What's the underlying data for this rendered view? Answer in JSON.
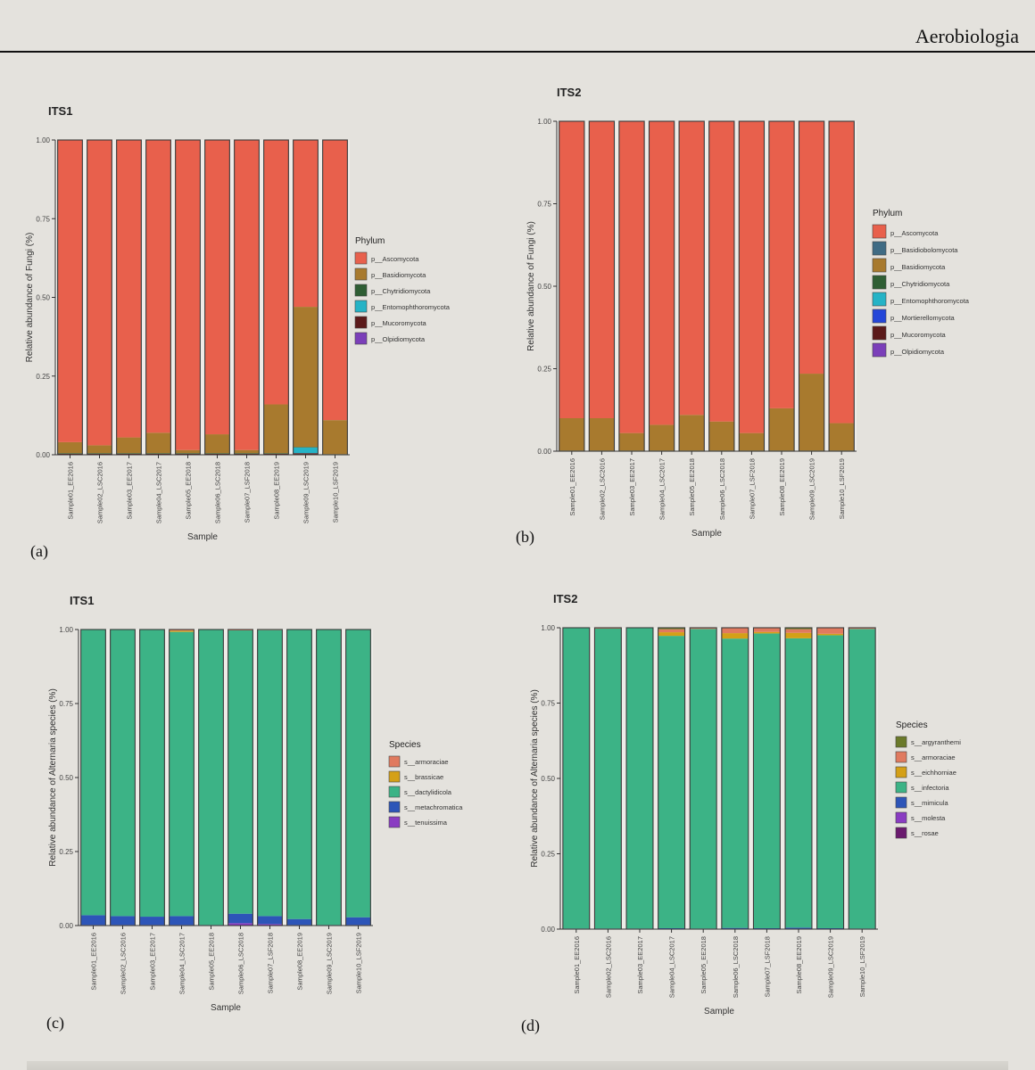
{
  "header": {
    "journal": "Aerobiologia"
  },
  "panels": [
    {
      "letter": "(a)"
    },
    {
      "letter": "(b)"
    },
    {
      "letter": "(c)"
    },
    {
      "letter": "(d)"
    }
  ],
  "chart_data": [
    {
      "type": "bar",
      "stacked": true,
      "title": "ITS1",
      "xlabel": "Sample",
      "ylabel": "Relative abundance of Fungi (%)",
      "ylim": [
        0,
        1
      ],
      "yticks": [
        "0.00",
        "0.25",
        "0.50",
        "0.75",
        "1.00"
      ],
      "legend_title": "Phylum",
      "legend_position": "right",
      "categories": [
        "Sample01_EE2016",
        "Sample02_LSC2016",
        "Sample03_EE2017",
        "Sample04_LSC2017",
        "Sample05_EE2018",
        "Sample06_LSC2018",
        "Sample07_LSF2018",
        "Sample08_EE2019",
        "Sample09_LSC2019",
        "Sample10_LSF2019"
      ],
      "series": [
        {
          "name": "p__Ascomycota",
          "color": "#e8604c",
          "values": [
            0.96,
            0.97,
            0.945,
            0.93,
            0.985,
            0.935,
            0.985,
            0.84,
            0.53,
            0.89
          ]
        },
        {
          "name": "p__Basidiomycota",
          "color": "#a87a2e",
          "values": [
            0.035,
            0.025,
            0.05,
            0.065,
            0.01,
            0.06,
            0.01,
            0.155,
            0.445,
            0.108
          ]
        },
        {
          "name": "p__Chytridiomycota",
          "color": "#2f5e34",
          "values": [
            0.002,
            0.002,
            0.002,
            0.002,
            0.002,
            0.002,
            0.002,
            0.002,
            0.002,
            0.001
          ]
        },
        {
          "name": "p__Entomophthoromycota",
          "color": "#25b3c6",
          "values": [
            0,
            0,
            0,
            0,
            0,
            0,
            0,
            0,
            0.018,
            0
          ]
        },
        {
          "name": "p__Mucoromycota",
          "color": "#5b1a1a",
          "values": [
            0.002,
            0.002,
            0.002,
            0.002,
            0.002,
            0.002,
            0.002,
            0.002,
            0.004,
            0.001
          ]
        },
        {
          "name": "p__Olpidiomycota",
          "color": "#7b3fb9",
          "values": [
            0.001,
            0.001,
            0.001,
            0.001,
            0.001,
            0.001,
            0.001,
            0.001,
            0.001,
            0
          ]
        }
      ]
    },
    {
      "type": "bar",
      "stacked": true,
      "title": "ITS2",
      "xlabel": "Sample",
      "ylabel": "Relative abundance of Fungi (%)",
      "ylim": [
        0,
        1
      ],
      "yticks": [
        "0.00",
        "0.25",
        "0.50",
        "0.75",
        "1.00"
      ],
      "legend_title": "Phylum",
      "legend_position": "right",
      "categories": [
        "Sample01_EE2016",
        "Sample02_LSC2016",
        "Sample03_EE2017",
        "Sample04_LSC2017",
        "Sample05_EE2018",
        "Sample06_LSC2018",
        "Sample07_LSF2018",
        "Sample08_EE2019",
        "Sample09_LSC2019",
        "Sample10_LSF2019"
      ],
      "series": [
        {
          "name": "p__Ascomycota",
          "color": "#e8604c",
          "values": [
            0.9,
            0.9,
            0.945,
            0.92,
            0.89,
            0.91,
            0.945,
            0.87,
            0.765,
            0.915
          ]
        },
        {
          "name": "p__Basidiobolomycota",
          "color": "#3f6b84",
          "values": [
            0,
            0,
            0,
            0,
            0,
            0,
            0,
            0,
            0,
            0
          ]
        },
        {
          "name": "p__Basidiomycota",
          "color": "#a87a2e",
          "values": [
            0.098,
            0.098,
            0.053,
            0.078,
            0.108,
            0.088,
            0.053,
            0.128,
            0.233,
            0.083
          ]
        },
        {
          "name": "p__Chytridiomycota",
          "color": "#2f5e34",
          "values": [
            0.001,
            0.001,
            0.001,
            0.001,
            0.001,
            0.001,
            0.001,
            0.001,
            0.001,
            0.001
          ]
        },
        {
          "name": "p__Entomophthoromycota",
          "color": "#25b3c6",
          "values": [
            0,
            0,
            0,
            0,
            0,
            0,
            0,
            0,
            0,
            0
          ]
        },
        {
          "name": "p__Mortierellomycota",
          "color": "#2446d8",
          "values": [
            0,
            0,
            0,
            0,
            0,
            0,
            0,
            0,
            0,
            0
          ]
        },
        {
          "name": "p__Mucoromycota",
          "color": "#5b1a1a",
          "values": [
            0.001,
            0.001,
            0.001,
            0.001,
            0.001,
            0.001,
            0.001,
            0.001,
            0.001,
            0.001
          ]
        },
        {
          "name": "p__Olpidiomycota",
          "color": "#7b3fb9",
          "values": [
            0,
            0,
            0,
            0,
            0,
            0,
            0,
            0,
            0,
            0
          ]
        }
      ]
    },
    {
      "type": "bar",
      "stacked": true,
      "title": "ITS1",
      "xlabel": "Sample",
      "ylabel": "Relative abundance of Alternaria species (%)",
      "ylim": [
        0,
        1
      ],
      "yticks": [
        "0.00",
        "0.25",
        "0.50",
        "0.75",
        "1.00"
      ],
      "legend_title": "Species",
      "legend_position": "right",
      "categories": [
        "Sample01_EE2016",
        "Sample02_LSC2016",
        "Sample03_EE2017",
        "Sample04_LSC2017",
        "Sample05_EE2018",
        "Sample06_LSC2018",
        "Sample07_LSF2018",
        "Sample08_EE2019",
        "Sample09_LSC2019",
        "Sample10_LSF2019"
      ],
      "series": [
        {
          "name": "s__armoraciae",
          "color": "#e07a5f",
          "values": [
            0,
            0,
            0,
            0.004,
            0,
            0.003,
            0.002,
            0,
            0,
            0
          ]
        },
        {
          "name": "s__brassicae",
          "color": "#d4a017",
          "values": [
            0,
            0,
            0,
            0.004,
            0,
            0,
            0,
            0,
            0,
            0
          ]
        },
        {
          "name": "s__dactylidicola",
          "color": "#3cb386",
          "values": [
            0.965,
            0.968,
            0.97,
            0.96,
            0.998,
            0.957,
            0.966,
            0.978,
            0.998,
            0.972
          ]
        },
        {
          "name": "s__metachromatica",
          "color": "#2d55b8",
          "values": [
            0.033,
            0.03,
            0.028,
            0.03,
            0.002,
            0.032,
            0.027,
            0.02,
            0.002,
            0.026
          ]
        },
        {
          "name": "s__tenuissima",
          "color": "#8a3cc2",
          "values": [
            0.002,
            0.002,
            0.002,
            0.002,
            0,
            0.008,
            0.005,
            0.002,
            0,
            0.002
          ]
        }
      ]
    },
    {
      "type": "bar",
      "stacked": true,
      "title": "ITS2",
      "xlabel": "Sample",
      "ylabel": "Relative abundance of Alternaria species (%)",
      "ylim": [
        0,
        1
      ],
      "yticks": [
        "0.00",
        "0.25",
        "0.50",
        "0.75",
        "1.00"
      ],
      "legend_title": "Species",
      "legend_position": "right",
      "categories": [
        "Sample01_EE2016",
        "Sample02_LSC2016",
        "Sample03_EE2017",
        "Sample04_LSC2017",
        "Sample05_EE2018",
        "Sample06_LSC2018",
        "Sample07_LSF2018",
        "Sample08_EE2019",
        "Sample09_LSC2019",
        "Sample10_LSF2019"
      ],
      "series": [
        {
          "name": "s__argyranthemi",
          "color": "#6b7a2a",
          "values": [
            0,
            0,
            0,
            0.005,
            0,
            0,
            0,
            0.005,
            0,
            0
          ]
        },
        {
          "name": "s__armoraciae",
          "color": "#e07a5f",
          "values": [
            0,
            0.003,
            0,
            0.01,
            0.004,
            0.018,
            0.014,
            0.012,
            0.02,
            0.004
          ]
        },
        {
          "name": "s__eichhorniae",
          "color": "#d4a017",
          "values": [
            0,
            0,
            0,
            0.012,
            0,
            0.018,
            0.005,
            0.018,
            0.005,
            0
          ]
        },
        {
          "name": "s__infectoria",
          "color": "#3cb386",
          "values": [
            0.998,
            0.995,
            0.998,
            0.97,
            0.994,
            0.96,
            0.978,
            0.96,
            0.972,
            0.994
          ]
        },
        {
          "name": "s__mimicula",
          "color": "#2d55b8",
          "values": [
            0.001,
            0.001,
            0.001,
            0.002,
            0.001,
            0.003,
            0.002,
            0.004,
            0.002,
            0.001
          ]
        },
        {
          "name": "s__molesta",
          "color": "#8a3cc2",
          "values": [
            0.001,
            0.001,
            0.001,
            0.001,
            0.001,
            0.001,
            0.001,
            0.001,
            0.001,
            0.001
          ]
        },
        {
          "name": "s__rosae",
          "color": "#6a1a6e",
          "values": [
            0,
            0,
            0,
            0,
            0,
            0,
            0,
            0,
            0,
            0
          ]
        }
      ]
    }
  ]
}
